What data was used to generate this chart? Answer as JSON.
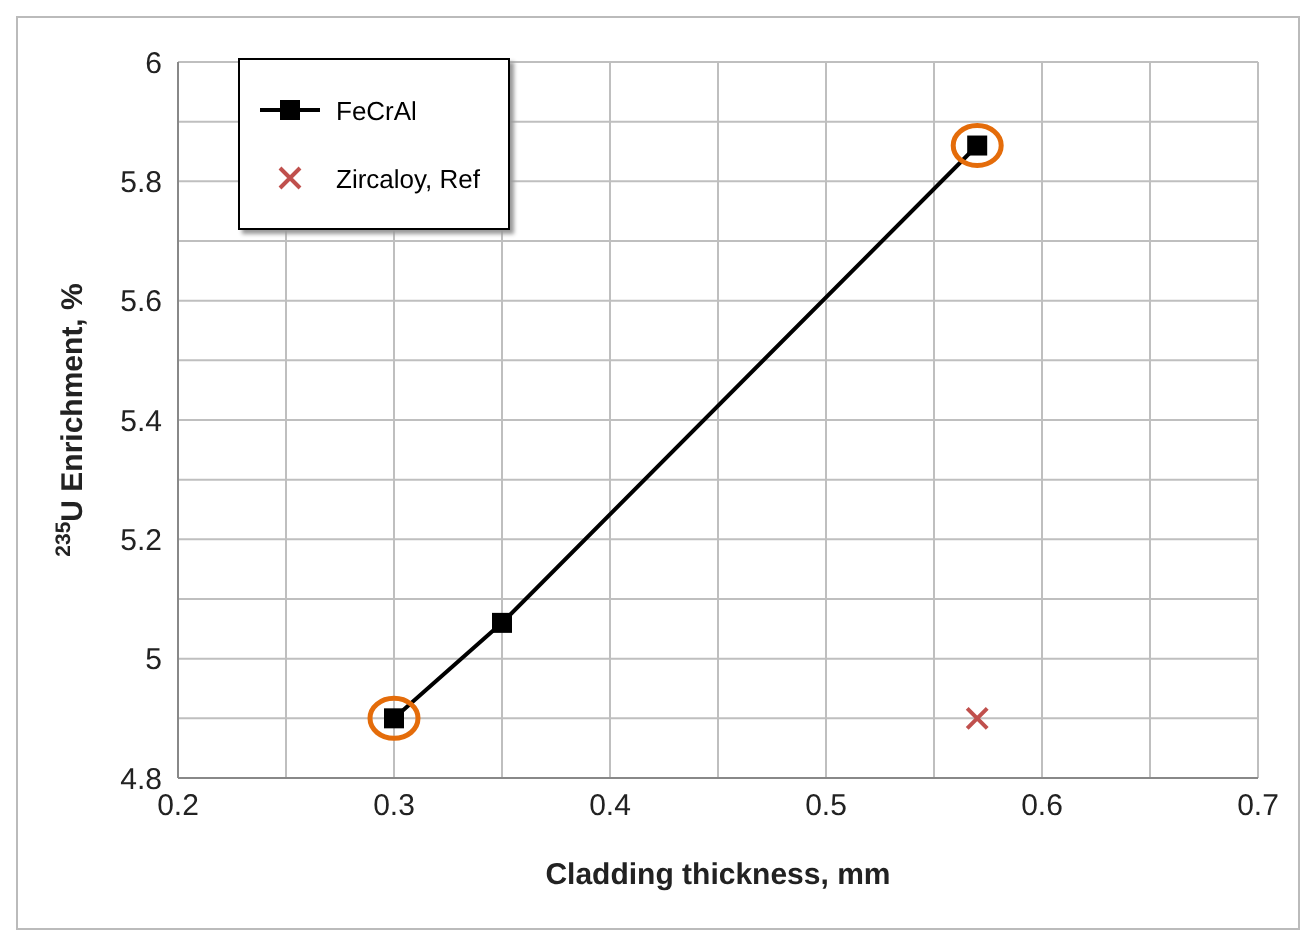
{
  "chart_data": {
    "type": "line",
    "xlabel": "Cladding thickness, mm",
    "ylabel": "$^{235}$U Enrichment, %",
    "xlim": [
      0.2,
      0.7
    ],
    "xticks": [
      0.2,
      {
        "value": 0.25,
        "label": null
      },
      0.3,
      {
        "value": 0.35,
        "label": null
      },
      0.4,
      {
        "value": 0.45,
        "label": null
      },
      0.5,
      {
        "value": 0.55,
        "label": null
      },
      0.6,
      {
        "value": 0.65,
        "label": null
      },
      0.7
    ],
    "ylim": [
      4.8,
      6
    ],
    "yticks": [
      4.8,
      {
        "value": 4.9,
        "label": null
      },
      5,
      {
        "value": 5.1,
        "label": null
      },
      5.2,
      {
        "value": 5.3,
        "label": null
      },
      5.4,
      {
        "value": 5.5,
        "label": null
      },
      5.6,
      {
        "value": 5.7,
        "label": null
      },
      5.8,
      {
        "value": 5.9,
        "label": null
      },
      6
    ],
    "grid": true,
    "legend": "top left",
    "series": [
      {
        "name": "FeCrAl",
        "color": "#000000",
        "marker": "square",
        "line_style": "solid",
        "x": [
          0.3,
          0.35,
          0.57
        ],
        "values": [
          4.9,
          5.06,
          5.86
        ]
      },
      {
        "name": "Zircaloy, Ref",
        "type": "scatter",
        "color": "#c0504d",
        "marker": "cross",
        "x": [
          0.57
        ],
        "values": [
          4.9
        ]
      },
      {
        "type": "scatter",
        "color": "#e46c0a",
        "marker": "circle",
        "x": [
          0.3,
          0.57
        ],
        "values": [
          4.9,
          5.86
        ]
      }
    ]
  }
}
